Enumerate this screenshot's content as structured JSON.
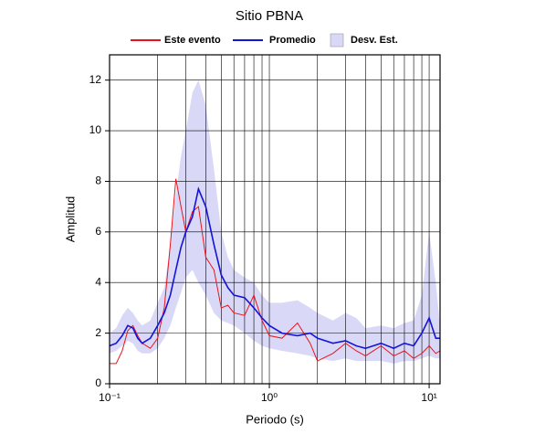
{
  "chart_data": {
    "type": "line",
    "title": "Sitio PBNA",
    "xlabel": "Periodo (s)",
    "ylabel": "Amplitud",
    "log_x": true,
    "grid": true,
    "xlim": [
      0.1,
      11.7
    ],
    "ylim": [
      0,
      13
    ],
    "xticks": [
      {
        "value": 0.1,
        "label": "10⁻¹"
      },
      {
        "value": 1,
        "label": "10⁰"
      },
      {
        "value": 10,
        "label": "10¹"
      }
    ],
    "yticks": [
      0,
      2,
      4,
      6,
      8,
      10,
      12
    ],
    "x": [
      0.1,
      0.11,
      0.12,
      0.13,
      0.14,
      0.15,
      0.16,
      0.18,
      0.2,
      0.22,
      0.24,
      0.26,
      0.28,
      0.3,
      0.33,
      0.36,
      0.4,
      0.45,
      0.5,
      0.55,
      0.6,
      0.7,
      0.8,
      0.9,
      1.0,
      1.2,
      1.5,
      1.8,
      2.0,
      2.5,
      3,
      3.5,
      4,
      5,
      6,
      7,
      8,
      9,
      10,
      11,
      11.7
    ],
    "band": {
      "name": "Desv. Est.",
      "color": "#d9d9f7",
      "upper": [
        2.0,
        2.2,
        2.7,
        3.0,
        2.8,
        2.5,
        2.3,
        2.5,
        3.2,
        3.8,
        5.5,
        7.5,
        9.0,
        10.0,
        11.5,
        12.0,
        11.0,
        8.5,
        6.0,
        5.0,
        4.5,
        4.2,
        4.0,
        3.5,
        3.2,
        3.2,
        3.3,
        3.0,
        2.8,
        2.5,
        2.8,
        2.6,
        2.2,
        2.3,
        2.2,
        2.4,
        2.5,
        3.5,
        6.0,
        4.0,
        2.3
      ],
      "lower": [
        1.2,
        1.3,
        1.5,
        1.7,
        1.6,
        1.3,
        1.2,
        1.2,
        1.4,
        1.8,
        2.3,
        3.0,
        3.6,
        4.2,
        4.5,
        4.0,
        3.5,
        2.8,
        2.5,
        2.4,
        2.3,
        2.0,
        1.7,
        1.5,
        1.4,
        1.3,
        1.2,
        1.1,
        1.0,
        0.9,
        1.0,
        0.9,
        0.9,
        0.9,
        0.8,
        0.9,
        0.9,
        1.0,
        1.1,
        1.0,
        1.0
      ]
    },
    "series": [
      {
        "name": "Este evento",
        "color": "#e8141c",
        "values": [
          0.8,
          0.8,
          1.3,
          2.1,
          2.3,
          1.9,
          1.6,
          1.4,
          1.8,
          3.0,
          5.5,
          8.1,
          7.0,
          6.0,
          6.8,
          7.0,
          5.0,
          4.5,
          3.0,
          3.1,
          2.8,
          2.7,
          3.5,
          2.5,
          1.9,
          1.8,
          2.4,
          1.6,
          0.9,
          1.2,
          1.6,
          1.3,
          1.1,
          1.5,
          1.1,
          1.3,
          1.0,
          1.2,
          1.5,
          1.2,
          1.3
        ]
      },
      {
        "name": "Promedio",
        "color": "#1414d8",
        "values": [
          1.5,
          1.6,
          1.9,
          2.3,
          2.2,
          1.8,
          1.6,
          1.8,
          2.3,
          2.8,
          3.5,
          4.5,
          5.4,
          6.0,
          6.6,
          7.7,
          7.0,
          5.5,
          4.3,
          3.8,
          3.5,
          3.4,
          3.0,
          2.6,
          2.3,
          2.0,
          1.9,
          2.0,
          1.8,
          1.6,
          1.7,
          1.5,
          1.4,
          1.6,
          1.4,
          1.6,
          1.5,
          2.0,
          2.6,
          1.8,
          1.8
        ]
      }
    ]
  }
}
